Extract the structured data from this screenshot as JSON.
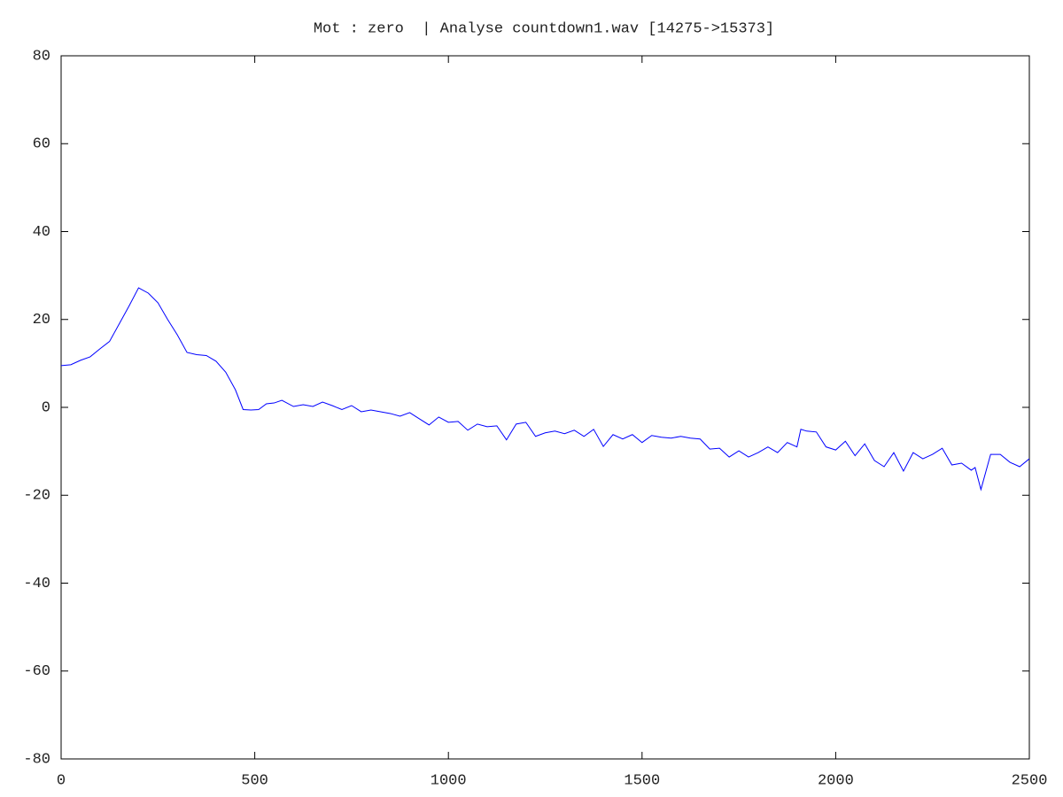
{
  "chart_data": {
    "type": "line",
    "title": "Mot : zero  | Analyse countdown1.wav [14275->15373]",
    "x": [
      0,
      25,
      50,
      75,
      100,
      125,
      150,
      175,
      200,
      225,
      250,
      275,
      300,
      325,
      350,
      375,
      400,
      425,
      450,
      470,
      490,
      510,
      530,
      550,
      570,
      600,
      625,
      650,
      675,
      700,
      725,
      750,
      775,
      800,
      825,
      850,
      875,
      900,
      925,
      950,
      975,
      1000,
      1025,
      1050,
      1075,
      1100,
      1125,
      1150,
      1175,
      1200,
      1225,
      1250,
      1275,
      1300,
      1325,
      1350,
      1375,
      1400,
      1425,
      1450,
      1475,
      1500,
      1525,
      1550,
      1575,
      1600,
      1625,
      1650,
      1675,
      1700,
      1725,
      1750,
      1775,
      1800,
      1825,
      1850,
      1875,
      1900,
      1910,
      1925,
      1950,
      1975,
      2000,
      2025,
      2050,
      2075,
      2100,
      2125,
      2150,
      2175,
      2200,
      2225,
      2250,
      2275,
      2300,
      2325,
      2350,
      2360,
      2375,
      2400,
      2425,
      2450,
      2475,
      2500
    ],
    "values": [
      9.5,
      9.7,
      10.7,
      11.5,
      13.3,
      15,
      19,
      23,
      27.2,
      26,
      23.8,
      20,
      16.5,
      12.5,
      12,
      11.8,
      10.5,
      8,
      4,
      -0.5,
      -0.6,
      -0.5,
      0.8,
      1,
      1.6,
      0.2,
      0.6,
      0.2,
      1.2,
      0.4,
      -0.5,
      0.4,
      -1,
      -0.6,
      -1,
      -1.4,
      -2,
      -1.2,
      -2.6,
      -4,
      -2.2,
      -3.4,
      -3.2,
      -5.2,
      -3.8,
      -4.4,
      -4.2,
      -7.4,
      -3.8,
      -3.4,
      -6.6,
      -5.8,
      -5.4,
      -6,
      -5.2,
      -6.6,
      -5,
      -8.9,
      -6.2,
      -7.2,
      -6.2,
      -8,
      -6.4,
      -6.8,
      -7,
      -6.6,
      -7,
      -7.2,
      -9.5,
      -9.3,
      -11.3,
      -9.9,
      -11.3,
      -10.3,
      -9,
      -10.3,
      -8,
      -9,
      -5,
      -5.4,
      -5.6,
      -9,
      -9.7,
      -7.7,
      -11,
      -8.3,
      -12.1,
      -13.5,
      -10.3,
      -14.5,
      -10.3,
      -11.7,
      -10.7,
      -9.3,
      -13.1,
      -12.7,
      -14.3,
      -13.7,
      -18.7,
      -10.7,
      -10.7,
      -12.5,
      -13.5,
      -11.7
    ],
    "color": "#0000ff",
    "xlim": [
      0,
      2500
    ],
    "xticks": [
      0,
      500,
      1000,
      1500,
      2000,
      2500
    ],
    "ylim": [
      -80,
      80
    ],
    "yticks": [
      -80,
      -60,
      -40,
      -20,
      0,
      20,
      40,
      60,
      80
    ]
  }
}
